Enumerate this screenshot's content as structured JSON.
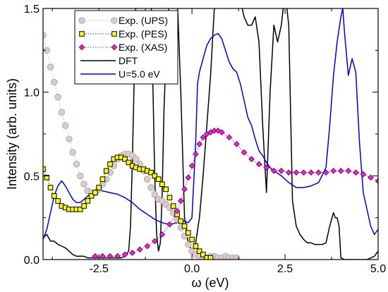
{
  "chart_data": {
    "type": "line",
    "title": "",
    "xlabel": "ω (eV)",
    "ylabel": "Intensity (arb. units)",
    "xlim": [
      -4.0,
      5.0
    ],
    "ylim": [
      0.0,
      1.5
    ],
    "x_ticks": [
      -2.5,
      0.0,
      2.5,
      5.0
    ],
    "x_tick_labels": [
      "-2.5",
      "0.0",
      "2.5",
      "5.0"
    ],
    "y_ticks": [
      0.0,
      0.5,
      1.0,
      1.5
    ],
    "y_tick_labels": [
      "0.0",
      "0.5",
      "1.0",
      "1.5"
    ],
    "grid": false,
    "legend_position": "top-left",
    "series": [
      {
        "name": "Exp. (UPS)",
        "kind": "markers",
        "marker": "circle",
        "color": "#b8a8a8",
        "fill": "#d8cccc",
        "x": [
          -4.0,
          -3.9,
          -3.8,
          -3.7,
          -3.6,
          -3.5,
          -3.4,
          -3.3,
          -3.2,
          -3.1,
          -3.0,
          -2.9,
          -2.8,
          -2.7,
          -2.6,
          -2.5,
          -2.4,
          -2.3,
          -2.2,
          -2.1,
          -2.0,
          -1.9,
          -1.8,
          -1.7,
          -1.6,
          -1.5,
          -1.4,
          -1.3,
          -1.2,
          -1.1,
          -1.0,
          -0.9,
          -0.8,
          -0.7,
          -0.6,
          -0.5,
          -0.4,
          -0.3,
          -0.2,
          -0.1,
          0.0,
          0.1,
          0.2,
          0.3,
          0.4,
          0.5,
          0.6,
          0.7,
          0.8,
          0.9,
          1.0,
          1.1,
          1.2
        ],
        "y": [
          1.34,
          1.25,
          1.15,
          1.06,
          0.97,
          0.88,
          0.8,
          0.72,
          0.64,
          0.57,
          0.5,
          0.45,
          0.41,
          0.4,
          0.4,
          0.42,
          0.45,
          0.48,
          0.52,
          0.56,
          0.6,
          0.62,
          0.63,
          0.63,
          0.62,
          0.6,
          0.57,
          0.53,
          0.48,
          0.43,
          0.39,
          0.36,
          0.35,
          0.33,
          0.31,
          0.28,
          0.24,
          0.19,
          0.14,
          0.09,
          0.05,
          0.03,
          0.02,
          0.01,
          0.01,
          0.02,
          0.02,
          0.01,
          0.01,
          0.02,
          0.01,
          0.01,
          0.01
        ]
      },
      {
        "name": "Exp. (PES)",
        "kind": "markers",
        "marker": "square",
        "color": "#000000",
        "fill": "#ffff00",
        "x": [
          -4.0,
          -3.9,
          -3.8,
          -3.7,
          -3.6,
          -3.5,
          -3.4,
          -3.3,
          -3.2,
          -3.1,
          -3.0,
          -2.9,
          -2.8,
          -2.7,
          -2.6,
          -2.5,
          -2.4,
          -2.3,
          -2.2,
          -2.1,
          -2.0,
          -1.9,
          -1.8,
          -1.7,
          -1.6,
          -1.5,
          -1.4,
          -1.3,
          -1.2,
          -1.1,
          -1.0,
          -0.9,
          -0.8,
          -0.7,
          -0.6,
          -0.5,
          -0.4,
          -0.3,
          -0.2,
          -0.1,
          0.0,
          0.1,
          0.2,
          0.3,
          0.4,
          0.5
        ],
        "y": [
          0.54,
          0.49,
          0.43,
          0.38,
          0.35,
          0.32,
          0.31,
          0.3,
          0.3,
          0.3,
          0.3,
          0.32,
          0.35,
          0.38,
          0.4,
          0.43,
          0.48,
          0.53,
          0.57,
          0.6,
          0.61,
          0.61,
          0.6,
          0.58,
          0.56,
          0.55,
          0.54,
          0.54,
          0.53,
          0.52,
          0.5,
          0.48,
          0.45,
          0.42,
          0.37,
          0.32,
          0.27,
          0.23,
          0.2,
          0.16,
          0.12,
          0.08,
          0.05,
          0.03,
          0.01,
          0.01
        ]
      },
      {
        "name": "Exp. (XAS)",
        "kind": "markers",
        "marker": "diamond",
        "color": "#660066",
        "fill": "#ee22cc",
        "x": [
          -2.6,
          -2.4,
          -2.2,
          -2.0,
          -1.8,
          -1.6,
          -1.4,
          -1.2,
          -1.0,
          -0.8,
          -0.6,
          -0.4,
          -0.3,
          -0.2,
          -0.1,
          0.0,
          0.1,
          0.2,
          0.3,
          0.4,
          0.5,
          0.6,
          0.7,
          0.8,
          1.0,
          1.2,
          1.4,
          1.6,
          1.8,
          2.0,
          2.2,
          2.4,
          2.6,
          2.8,
          3.0,
          3.2,
          3.4,
          3.6,
          3.8,
          4.0,
          4.2,
          4.4,
          4.6,
          4.8,
          5.0
        ],
        "y": [
          0.02,
          0.02,
          0.02,
          0.02,
          0.03,
          0.04,
          0.06,
          0.08,
          0.11,
          0.15,
          0.21,
          0.29,
          0.35,
          0.42,
          0.49,
          0.56,
          0.63,
          0.69,
          0.73,
          0.75,
          0.76,
          0.77,
          0.77,
          0.76,
          0.73,
          0.69,
          0.64,
          0.6,
          0.57,
          0.55,
          0.53,
          0.53,
          0.52,
          0.52,
          0.52,
          0.52,
          0.52,
          0.52,
          0.53,
          0.53,
          0.53,
          0.52,
          0.51,
          0.49,
          0.47
        ]
      },
      {
        "name": "DFT",
        "kind": "line",
        "color": "#000000",
        "x": [
          -4.0,
          -3.9,
          -3.8,
          -3.7,
          -3.6,
          -3.5,
          -3.4,
          -3.3,
          -3.2,
          -3.1,
          -3.0,
          -2.9,
          -2.8,
          -2.7,
          -2.6,
          -2.5,
          -2.4,
          -2.3,
          -2.2,
          -2.1,
          -2.0,
          -1.9,
          -1.8,
          -1.7,
          -1.65,
          -1.6,
          -1.55,
          -1.5,
          -1.45,
          -1.4,
          -1.3,
          -1.2,
          -1.1,
          -1.0,
          -0.95,
          -0.9,
          -0.85,
          -0.8,
          -0.75,
          -0.7,
          -0.65,
          -0.6,
          -0.55,
          -0.5,
          -0.4,
          -0.3,
          -0.2,
          -0.1,
          0.0,
          0.1,
          0.2,
          0.3,
          0.4,
          0.5,
          0.6,
          0.7,
          0.8,
          0.9,
          1.0,
          1.1,
          1.2,
          1.3,
          1.4,
          1.5,
          1.6,
          1.7,
          1.8,
          1.9,
          2.0,
          2.1,
          2.2,
          2.3,
          2.4,
          2.5,
          2.6,
          2.7,
          2.8,
          2.9,
          3.0,
          3.1,
          3.2,
          3.3,
          3.4,
          3.5,
          3.6,
          3.7,
          3.8,
          3.85,
          3.9,
          3.95,
          4.0,
          4.1,
          4.2,
          4.3,
          4.5,
          4.7,
          4.9,
          5.0
        ],
        "y": [
          0.13,
          0.15,
          0.11,
          0.11,
          0.09,
          0.08,
          0.07,
          0.05,
          0.03,
          0.02,
          0.02,
          0.02,
          0.01,
          0.01,
          0.01,
          0.01,
          0.01,
          0.01,
          0.01,
          0.01,
          0.01,
          0.01,
          0.02,
          0.05,
          0.2,
          0.6,
          1.1,
          1.6,
          1.6,
          1.6,
          1.6,
          1.6,
          1.6,
          0.5,
          0.15,
          0.05,
          0.1,
          0.4,
          0.9,
          1.2,
          1.4,
          1.6,
          1.6,
          1.6,
          1.6,
          1.0,
          0.25,
          0.1,
          0.05,
          0.1,
          0.25,
          0.5,
          0.8,
          1.1,
          1.5,
          1.6,
          1.6,
          1.6,
          1.6,
          1.6,
          1.6,
          1.55,
          1.45,
          1.4,
          1.4,
          1.45,
          1.3,
          0.8,
          0.4,
          1.0,
          1.4,
          1.3,
          1.4,
          1.6,
          1.4,
          0.35,
          0.2,
          0.15,
          0.12,
          0.1,
          0.1,
          0.09,
          0.09,
          0.09,
          0.1,
          0.2,
          0.28,
          0.25,
          0.25,
          0.2,
          0.01,
          0.0,
          0.0,
          0.0,
          0.0,
          0.0,
          0.02,
          0.05
        ]
      },
      {
        "name": "U=5.0 eV",
        "kind": "line",
        "color": "#0000dd",
        "x": [
          -4.0,
          -3.9,
          -3.8,
          -3.7,
          -3.6,
          -3.5,
          -3.4,
          -3.3,
          -3.2,
          -3.1,
          -3.0,
          -2.9,
          -2.8,
          -2.7,
          -2.6,
          -2.5,
          -2.4,
          -2.2,
          -2.0,
          -1.8,
          -1.6,
          -1.4,
          -1.2,
          -1.0,
          -0.8,
          -0.6,
          -0.4,
          -0.3,
          -0.2,
          -0.1,
          0.0,
          0.1,
          0.15,
          0.2,
          0.3,
          0.4,
          0.5,
          0.6,
          0.7,
          0.8,
          0.9,
          1.0,
          1.1,
          1.2,
          1.3,
          1.4,
          1.5,
          1.6,
          1.7,
          1.8,
          1.9,
          2.0,
          2.1,
          2.2,
          2.4,
          2.6,
          2.8,
          3.0,
          3.2,
          3.4,
          3.6,
          3.7,
          3.8,
          3.9,
          4.0,
          4.05,
          4.1,
          4.2,
          4.3,
          4.4,
          4.5,
          4.6,
          4.7,
          4.8,
          4.9,
          5.0
        ],
        "y": [
          0.12,
          0.18,
          0.28,
          0.38,
          0.44,
          0.47,
          0.44,
          0.4,
          0.36,
          0.34,
          0.34,
          0.36,
          0.38,
          0.39,
          0.4,
          0.41,
          0.41,
          0.4,
          0.39,
          0.37,
          0.34,
          0.3,
          0.27,
          0.24,
          0.22,
          0.21,
          0.22,
          0.23,
          0.23,
          0.22,
          0.25,
          0.7,
          1.05,
          1.12,
          1.2,
          1.28,
          1.32,
          1.34,
          1.35,
          1.32,
          1.25,
          1.18,
          1.14,
          1.12,
          1.05,
          0.95,
          0.85,
          0.8,
          0.72,
          0.65,
          0.62,
          0.58,
          0.55,
          0.53,
          0.5,
          0.46,
          0.43,
          0.43,
          0.44,
          0.46,
          0.55,
          0.8,
          1.1,
          1.3,
          1.45,
          1.5,
          1.35,
          1.1,
          1.2,
          1.12,
          0.7,
          0.4,
          0.3,
          0.2,
          0.15,
          0.18
        ]
      }
    ]
  }
}
